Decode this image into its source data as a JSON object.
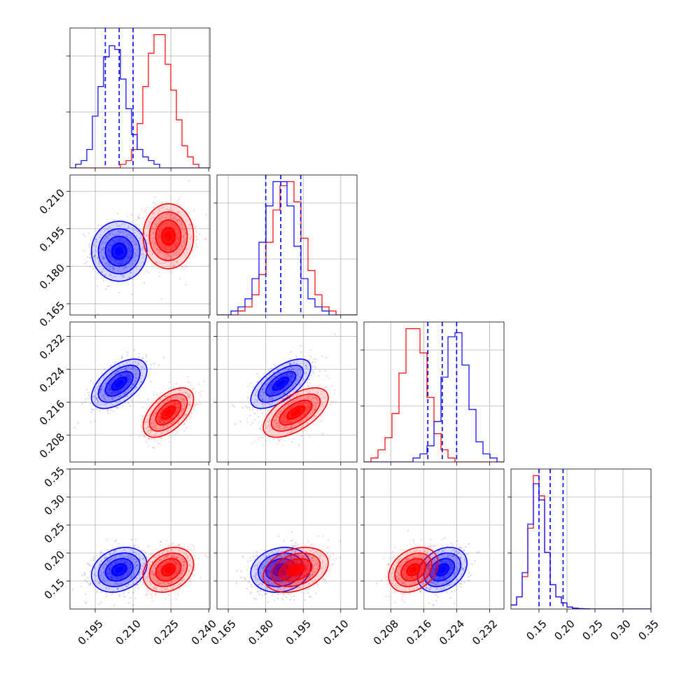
{
  "chart_data": {
    "type": "corner",
    "n_params": 4,
    "series": [
      {
        "name": "",
        "color": "#0000ff",
        "means": [
          0.2045,
          0.186,
          0.2205,
          0.17
        ],
        "sds": [
          0.0055,
          0.006,
          0.003,
          0.02
        ],
        "corr": [
          [
            0,
            0,
            0,
            0
          ],
          [
            0,
            0,
            0,
            0
          ],
          [
            0.55,
            0.65,
            0,
            0
          ],
          [
            0.25,
            0.15,
            0.3,
            0
          ]
        ],
        "quantiles_shown": true
      },
      {
        "name": "",
        "color": "#ff0000",
        "means": [
          0.224,
          0.192,
          0.2135,
          0.17
        ],
        "sds": [
          0.005,
          0.0065,
          0.003,
          0.02
        ],
        "corr": [
          [
            0,
            0,
            0,
            0
          ],
          [
            0,
            0,
            0,
            0
          ],
          [
            0.55,
            0.6,
            0,
            0
          ],
          [
            0.25,
            0.3,
            0.3,
            0
          ]
        ],
        "quantiles_shown": false
      }
    ],
    "histograms": [
      {
        "param": 0,
        "range": [
          0.185,
          0.2405
        ],
        "blue": [
          0,
          1,
          2,
          5,
          14,
          22,
          30,
          33,
          32,
          24,
          16,
          9,
          5,
          3,
          2,
          1,
          0,
          0,
          0,
          0,
          0,
          0,
          0,
          0,
          0
        ],
        "red": [
          0,
          0,
          0,
          0,
          0,
          0,
          0,
          0,
          0,
          1,
          2,
          5,
          12,
          22,
          31,
          36,
          36,
          28,
          21,
          13,
          6,
          3,
          1,
          0,
          0
        ]
      },
      {
        "param": 1,
        "range": [
          0.1605,
          0.2165
        ],
        "blue": [
          0,
          0,
          1,
          2,
          4,
          9,
          18,
          27,
          33,
          33,
          27,
          17,
          9,
          4,
          2,
          1,
          0,
          0,
          0,
          0
        ],
        "red": [
          0,
          0,
          0,
          1,
          2,
          5,
          10,
          18,
          26,
          32,
          33,
          28,
          19,
          11,
          5,
          2,
          1,
          0,
          0,
          0
        ]
      },
      {
        "param": 2,
        "range": [
          0.2015,
          0.2355
        ],
        "blue": [
          0,
          0,
          0,
          0,
          0,
          0,
          0,
          1,
          2,
          4,
          10,
          21,
          31,
          32,
          24,
          13,
          5,
          2,
          1,
          0
        ],
        "red": [
          0,
          1,
          3,
          6,
          12,
          22,
          33,
          33,
          27,
          16,
          7,
          3,
          1,
          0,
          0,
          0,
          0,
          0,
          0,
          0
        ]
      },
      {
        "param": 3,
        "range": [
          0.1,
          0.35
        ],
        "blue": [
          1,
          3,
          9,
          21,
          31,
          27,
          14,
          6,
          3,
          1.5,
          0.5,
          0.2,
          0.1,
          0.05,
          0,
          0,
          0,
          0,
          0,
          0,
          0,
          0,
          0,
          0,
          0
        ],
        "red": [
          1,
          3,
          8,
          20,
          33,
          28,
          14,
          6,
          3,
          1.5,
          0.5,
          0.2,
          0.1,
          0.05,
          0,
          0,
          0,
          0,
          0,
          0,
          0,
          0,
          0,
          0,
          0
        ]
      }
    ],
    "quantiles_blue": [
      [
        0.199,
        0.2045,
        0.21
      ],
      [
        0.18,
        0.186,
        0.194
      ],
      [
        0.217,
        0.2205,
        0.224
      ],
      [
        0.15,
        0.17,
        0.193
      ]
    ],
    "axes": [
      {
        "lim": [
          0.185,
          0.2405
        ],
        "ticks": [
          0.195,
          0.21,
          0.225,
          0.24
        ],
        "tick_labels": [
          "0.195",
          "0.210",
          "0.225",
          "0.240"
        ]
      },
      {
        "lim": [
          0.1605,
          0.2165
        ],
        "ticks": [
          0.165,
          0.18,
          0.195,
          0.21
        ],
        "tick_labels": [
          "0.165",
          "0.180",
          "0.195",
          "0.210"
        ]
      },
      {
        "lim": [
          0.2015,
          0.2355
        ],
        "ticks": [
          0.208,
          0.216,
          0.224,
          0.232
        ],
        "tick_labels": [
          "0.208",
          "0.216",
          "0.224",
          "0.232"
        ]
      },
      {
        "lim": [
          0.1,
          0.35
        ],
        "ticks": [
          0.15,
          0.2,
          0.25,
          0.3,
          0.35
        ],
        "tick_labels": [
          "0.15",
          "0.20",
          "0.25",
          "0.30",
          "0.35"
        ]
      }
    ],
    "grid": true,
    "legend": "none"
  }
}
